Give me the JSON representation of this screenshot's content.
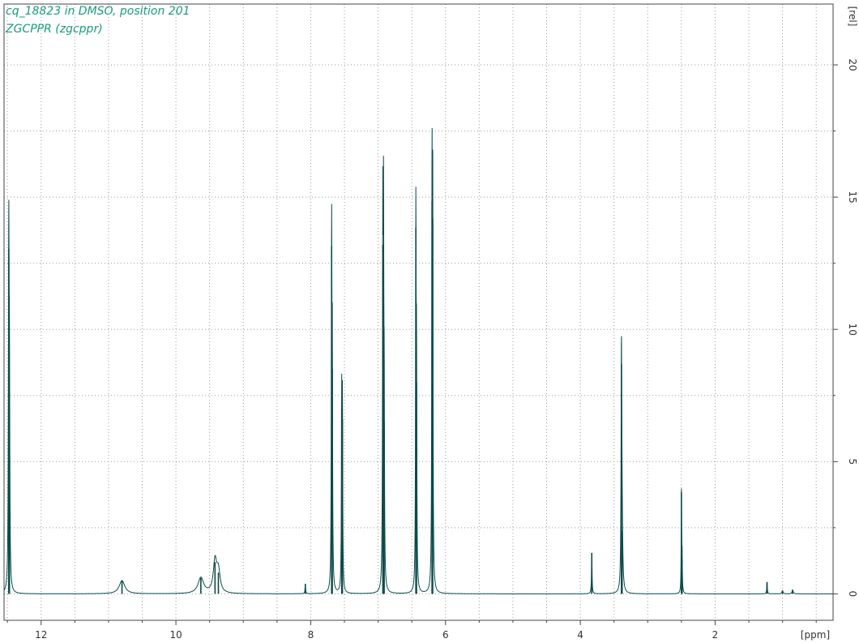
{
  "header": {
    "line1": "cq_18823 in DMSO, position 201",
    "line2": "ZGCPPR (zgcppr)"
  },
  "chart_data": {
    "type": "line",
    "title": "",
    "xlabel": "[ppm]",
    "ylabel": "[rel]",
    "xlim": [
      12.55,
      0.25
    ],
    "ylim": [
      -1.0,
      22.3
    ],
    "x_ticks": [
      12,
      10,
      8,
      6,
      4,
      2
    ],
    "y_ticks": [
      0,
      5,
      10,
      15,
      20
    ],
    "grid": true,
    "line_color": "#0c4a4a",
    "accent_color": "#1a9a7e",
    "peaks": [
      {
        "ppm": 12.48,
        "height": 13.05,
        "width": 0.006
      },
      {
        "ppm": 12.47,
        "height": 7.1,
        "width": 0.006
      },
      {
        "ppm": 10.8,
        "height": 0.5,
        "width": 0.05
      },
      {
        "ppm": 9.63,
        "height": 0.6,
        "width": 0.05
      },
      {
        "ppm": 9.42,
        "height": 1.2,
        "width": 0.03
      },
      {
        "ppm": 9.37,
        "height": 0.8,
        "width": 0.03
      },
      {
        "ppm": 8.08,
        "height": 0.38,
        "width": 0.005
      },
      {
        "ppm": 7.69,
        "height": 13.15,
        "width": 0.005
      },
      {
        "ppm": 7.68,
        "height": 8.5,
        "width": 0.005
      },
      {
        "ppm": 7.54,
        "height": 7.0,
        "width": 0.005
      },
      {
        "ppm": 7.53,
        "height": 6.6,
        "width": 0.005
      },
      {
        "ppm": 6.93,
        "height": 13.2,
        "width": 0.005
      },
      {
        "ppm": 6.92,
        "height": 12.6,
        "width": 0.005
      },
      {
        "ppm": 6.91,
        "height": 6.5,
        "width": 0.005
      },
      {
        "ppm": 6.44,
        "height": 13.85,
        "width": 0.005
      },
      {
        "ppm": 6.43,
        "height": 8.0,
        "width": 0.005
      },
      {
        "ppm": 6.2,
        "height": 14.85,
        "width": 0.005
      },
      {
        "ppm": 6.19,
        "height": 14.2,
        "width": 0.005
      },
      {
        "ppm": 3.83,
        "height": 1.55,
        "width": 0.005
      },
      {
        "ppm": 3.39,
        "height": 8.7,
        "width": 0.006
      },
      {
        "ppm": 3.38,
        "height": 2.4,
        "width": 0.01
      },
      {
        "ppm": 2.5,
        "height": 3.85,
        "width": 0.004
      },
      {
        "ppm": 2.49,
        "height": 1.3,
        "width": 0.004
      },
      {
        "ppm": 1.23,
        "height": 0.45,
        "width": 0.005
      },
      {
        "ppm": 1.0,
        "height": 0.12,
        "width": 0.01
      },
      {
        "ppm": 0.85,
        "height": 0.15,
        "width": 0.01
      }
    ]
  }
}
